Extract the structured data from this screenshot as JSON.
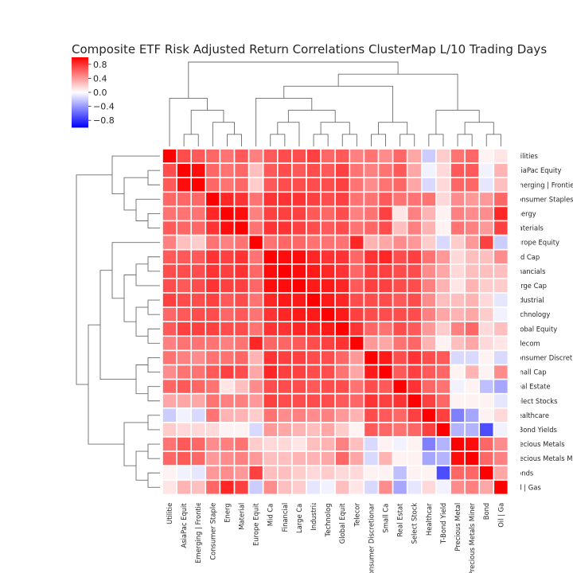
{
  "chart_data": {
    "type": "heatmap",
    "title": "Composite ETF Risk Adjusted Return Correlations ClusterMap L/10 Trading Days",
    "labels": [
      "Utilities",
      "AsiaPac Equity",
      "Emerging | Frontier",
      "Consumer Staples",
      "Energy",
      "Materials",
      "Europe Equity",
      "Mid Cap",
      "Financials",
      "Large Cap",
      "Industrial",
      "Technology",
      "Global Equity",
      "Telecom",
      "Consumer Discretionary",
      "Small Cap",
      "Real Estate",
      "Select Stocks",
      "Healthcare",
      "T-Bond Yields",
      "Precious Metals",
      "Precious Metals Miners",
      "Bonds",
      "Oil | Gas"
    ],
    "colorbar": {
      "range": [
        -1,
        1
      ],
      "ticks": [
        0.8,
        0.4,
        0.0,
        -0.4,
        -0.8
      ],
      "tick_labels": [
        "0.8",
        "0.4",
        "0.0",
        "−0.4",
        "−0.8"
      ],
      "colormap": "bwr",
      "colors": {
        "low": "#0000ff",
        "mid": "#ffffff",
        "high": "#ff0000"
      }
    },
    "matrix": [
      [
        1.0,
        0.7,
        0.65,
        0.6,
        0.55,
        0.65,
        0.5,
        0.65,
        0.7,
        0.7,
        0.75,
        0.6,
        0.65,
        0.5,
        0.55,
        0.45,
        0.6,
        0.35,
        -0.2,
        0.2,
        0.55,
        0.6,
        0.05,
        0.1
      ],
      [
        0.7,
        1.0,
        0.95,
        0.6,
        0.55,
        0.6,
        0.25,
        0.65,
        0.7,
        0.65,
        0.7,
        0.65,
        0.75,
        0.55,
        0.5,
        0.55,
        0.65,
        0.35,
        -0.05,
        0.15,
        0.65,
        0.65,
        -0.05,
        0.3
      ],
      [
        0.65,
        0.95,
        1.0,
        0.6,
        0.55,
        0.6,
        0.2,
        0.65,
        0.7,
        0.7,
        0.7,
        0.7,
        0.75,
        0.55,
        0.45,
        0.55,
        0.6,
        0.35,
        -0.15,
        0.15,
        0.6,
        0.6,
        -0.1,
        0.25
      ],
      [
        0.6,
        0.6,
        0.6,
        1.0,
        0.85,
        0.8,
        0.55,
        0.8,
        0.8,
        0.8,
        0.75,
        0.7,
        0.75,
        0.55,
        0.55,
        0.65,
        0.55,
        0.55,
        0.55,
        0.15,
        0.45,
        0.4,
        0.4,
        0.6
      ],
      [
        0.55,
        0.55,
        0.55,
        0.85,
        1.0,
        0.95,
        0.5,
        0.75,
        0.75,
        0.75,
        0.65,
        0.6,
        0.7,
        0.5,
        0.55,
        0.75,
        0.1,
        0.5,
        0.3,
        0.05,
        0.5,
        0.45,
        0.45,
        0.85
      ],
      [
        0.65,
        0.6,
        0.6,
        0.8,
        0.95,
        1.0,
        0.55,
        0.8,
        0.8,
        0.75,
        0.7,
        0.65,
        0.7,
        0.55,
        0.6,
        0.7,
        0.25,
        0.5,
        0.3,
        0.05,
        0.55,
        0.5,
        0.4,
        0.75
      ],
      [
        0.5,
        0.25,
        0.2,
        0.55,
        0.5,
        0.55,
        1.0,
        0.55,
        0.6,
        0.6,
        0.55,
        0.55,
        0.55,
        0.85,
        0.3,
        0.35,
        0.45,
        0.4,
        0.2,
        -0.15,
        0.2,
        0.4,
        0.75,
        -0.2
      ],
      [
        0.65,
        0.65,
        0.65,
        0.8,
        0.75,
        0.8,
        0.55,
        1.0,
        0.95,
        0.95,
        0.85,
        0.8,
        0.8,
        0.6,
        0.8,
        0.85,
        0.7,
        0.75,
        0.55,
        0.4,
        0.15,
        0.25,
        0.25,
        0.45
      ],
      [
        0.7,
        0.7,
        0.7,
        0.8,
        0.75,
        0.8,
        0.6,
        0.95,
        1.0,
        0.95,
        0.9,
        0.85,
        0.8,
        0.6,
        0.75,
        0.75,
        0.7,
        0.7,
        0.45,
        0.35,
        0.15,
        0.25,
        0.25,
        0.25
      ],
      [
        0.7,
        0.65,
        0.7,
        0.8,
        0.75,
        0.75,
        0.6,
        0.95,
        0.95,
        1.0,
        0.9,
        0.9,
        0.85,
        0.65,
        0.75,
        0.75,
        0.7,
        0.7,
        0.5,
        0.3,
        0.1,
        0.3,
        0.2,
        0.2
      ],
      [
        0.75,
        0.7,
        0.7,
        0.75,
        0.65,
        0.7,
        0.55,
        0.85,
        0.9,
        0.9,
        1.0,
        0.9,
        0.85,
        0.7,
        0.7,
        0.7,
        0.65,
        0.7,
        0.45,
        0.25,
        0.25,
        0.3,
        0.15,
        -0.1
      ],
      [
        0.6,
        0.65,
        0.7,
        0.7,
        0.6,
        0.65,
        0.55,
        0.8,
        0.85,
        0.9,
        0.9,
        1.0,
        0.9,
        0.75,
        0.7,
        0.7,
        0.7,
        0.7,
        0.5,
        0.35,
        0.3,
        0.35,
        0.2,
        -0.05
      ],
      [
        0.65,
        0.75,
        0.75,
        0.75,
        0.7,
        0.7,
        0.55,
        0.8,
        0.8,
        0.85,
        0.85,
        0.9,
        1.0,
        0.8,
        0.6,
        0.55,
        0.7,
        0.65,
        0.4,
        0.2,
        0.5,
        0.6,
        0.15,
        0.25
      ],
      [
        0.5,
        0.55,
        0.55,
        0.55,
        0.5,
        0.55,
        0.85,
        0.6,
        0.6,
        0.65,
        0.7,
        0.75,
        0.8,
        1.0,
        0.4,
        0.35,
        0.55,
        0.6,
        0.3,
        0.05,
        0.25,
        0.35,
        0.15,
        0.1
      ],
      [
        0.55,
        0.5,
        0.45,
        0.55,
        0.55,
        0.6,
        0.3,
        0.8,
        0.75,
        0.75,
        0.7,
        0.7,
        0.6,
        0.4,
        1.0,
        0.9,
        0.7,
        0.8,
        0.7,
        0.65,
        -0.15,
        -0.15,
        0.05,
        -0.15
      ],
      [
        0.45,
        0.55,
        0.55,
        0.65,
        0.75,
        0.7,
        0.35,
        0.85,
        0.75,
        0.75,
        0.7,
        0.7,
        0.55,
        0.35,
        0.9,
        1.0,
        0.65,
        0.75,
        0.65,
        0.6,
        0.05,
        0.3,
        0.05,
        0.45
      ],
      [
        0.6,
        0.65,
        0.6,
        0.55,
        0.1,
        0.25,
        0.45,
        0.7,
        0.7,
        0.7,
        0.65,
        0.7,
        0.7,
        0.55,
        0.7,
        0.65,
        1.0,
        0.8,
        0.6,
        0.55,
        -0.05,
        0.05,
        -0.25,
        -0.35
      ],
      [
        0.35,
        0.35,
        0.35,
        0.55,
        0.5,
        0.5,
        0.4,
        0.75,
        0.7,
        0.7,
        0.7,
        0.7,
        0.65,
        0.6,
        0.8,
        0.75,
        0.8,
        1.0,
        0.75,
        0.6,
        0.05,
        0.05,
        0.05,
        -0.1
      ],
      [
        -0.2,
        -0.05,
        -0.15,
        0.55,
        0.3,
        0.3,
        0.2,
        0.55,
        0.45,
        0.5,
        0.45,
        0.5,
        0.4,
        0.3,
        0.7,
        0.65,
        0.6,
        0.75,
        1.0,
        0.75,
        -0.5,
        -0.35,
        0.05,
        0.15
      ],
      [
        0.2,
        0.15,
        0.15,
        0.15,
        0.05,
        0.05,
        -0.15,
        0.4,
        0.35,
        0.3,
        0.25,
        0.35,
        0.2,
        0.05,
        0.65,
        0.6,
        0.55,
        0.6,
        0.75,
        1.0,
        -0.3,
        -0.3,
        -0.7,
        -0.05
      ],
      [
        0.55,
        0.65,
        0.6,
        0.45,
        0.5,
        0.55,
        0.2,
        0.15,
        0.15,
        0.1,
        0.25,
        0.3,
        0.5,
        0.25,
        -0.15,
        0.05,
        -0.05,
        0.05,
        -0.5,
        -0.3,
        1.0,
        0.95,
        0.6,
        0.45
      ],
      [
        0.6,
        0.65,
        0.6,
        0.4,
        0.45,
        0.5,
        0.4,
        0.25,
        0.25,
        0.3,
        0.3,
        0.35,
        0.6,
        0.35,
        -0.15,
        0.3,
        0.05,
        0.05,
        -0.35,
        -0.3,
        0.95,
        1.0,
        0.6,
        0.5
      ],
      [
        0.05,
        -0.05,
        -0.1,
        0.4,
        0.45,
        0.4,
        0.75,
        0.25,
        0.25,
        0.2,
        0.15,
        0.2,
        0.15,
        0.15,
        0.05,
        0.05,
        -0.25,
        0.05,
        0.05,
        -0.7,
        0.6,
        0.6,
        1.0,
        0.35
      ],
      [
        0.1,
        0.3,
        0.25,
        0.6,
        0.85,
        0.75,
        -0.2,
        0.45,
        0.25,
        0.2,
        -0.1,
        -0.05,
        0.25,
        0.1,
        -0.15,
        0.45,
        -0.35,
        -0.1,
        0.15,
        -0.05,
        0.45,
        0.5,
        0.35,
        1.0
      ]
    ]
  }
}
